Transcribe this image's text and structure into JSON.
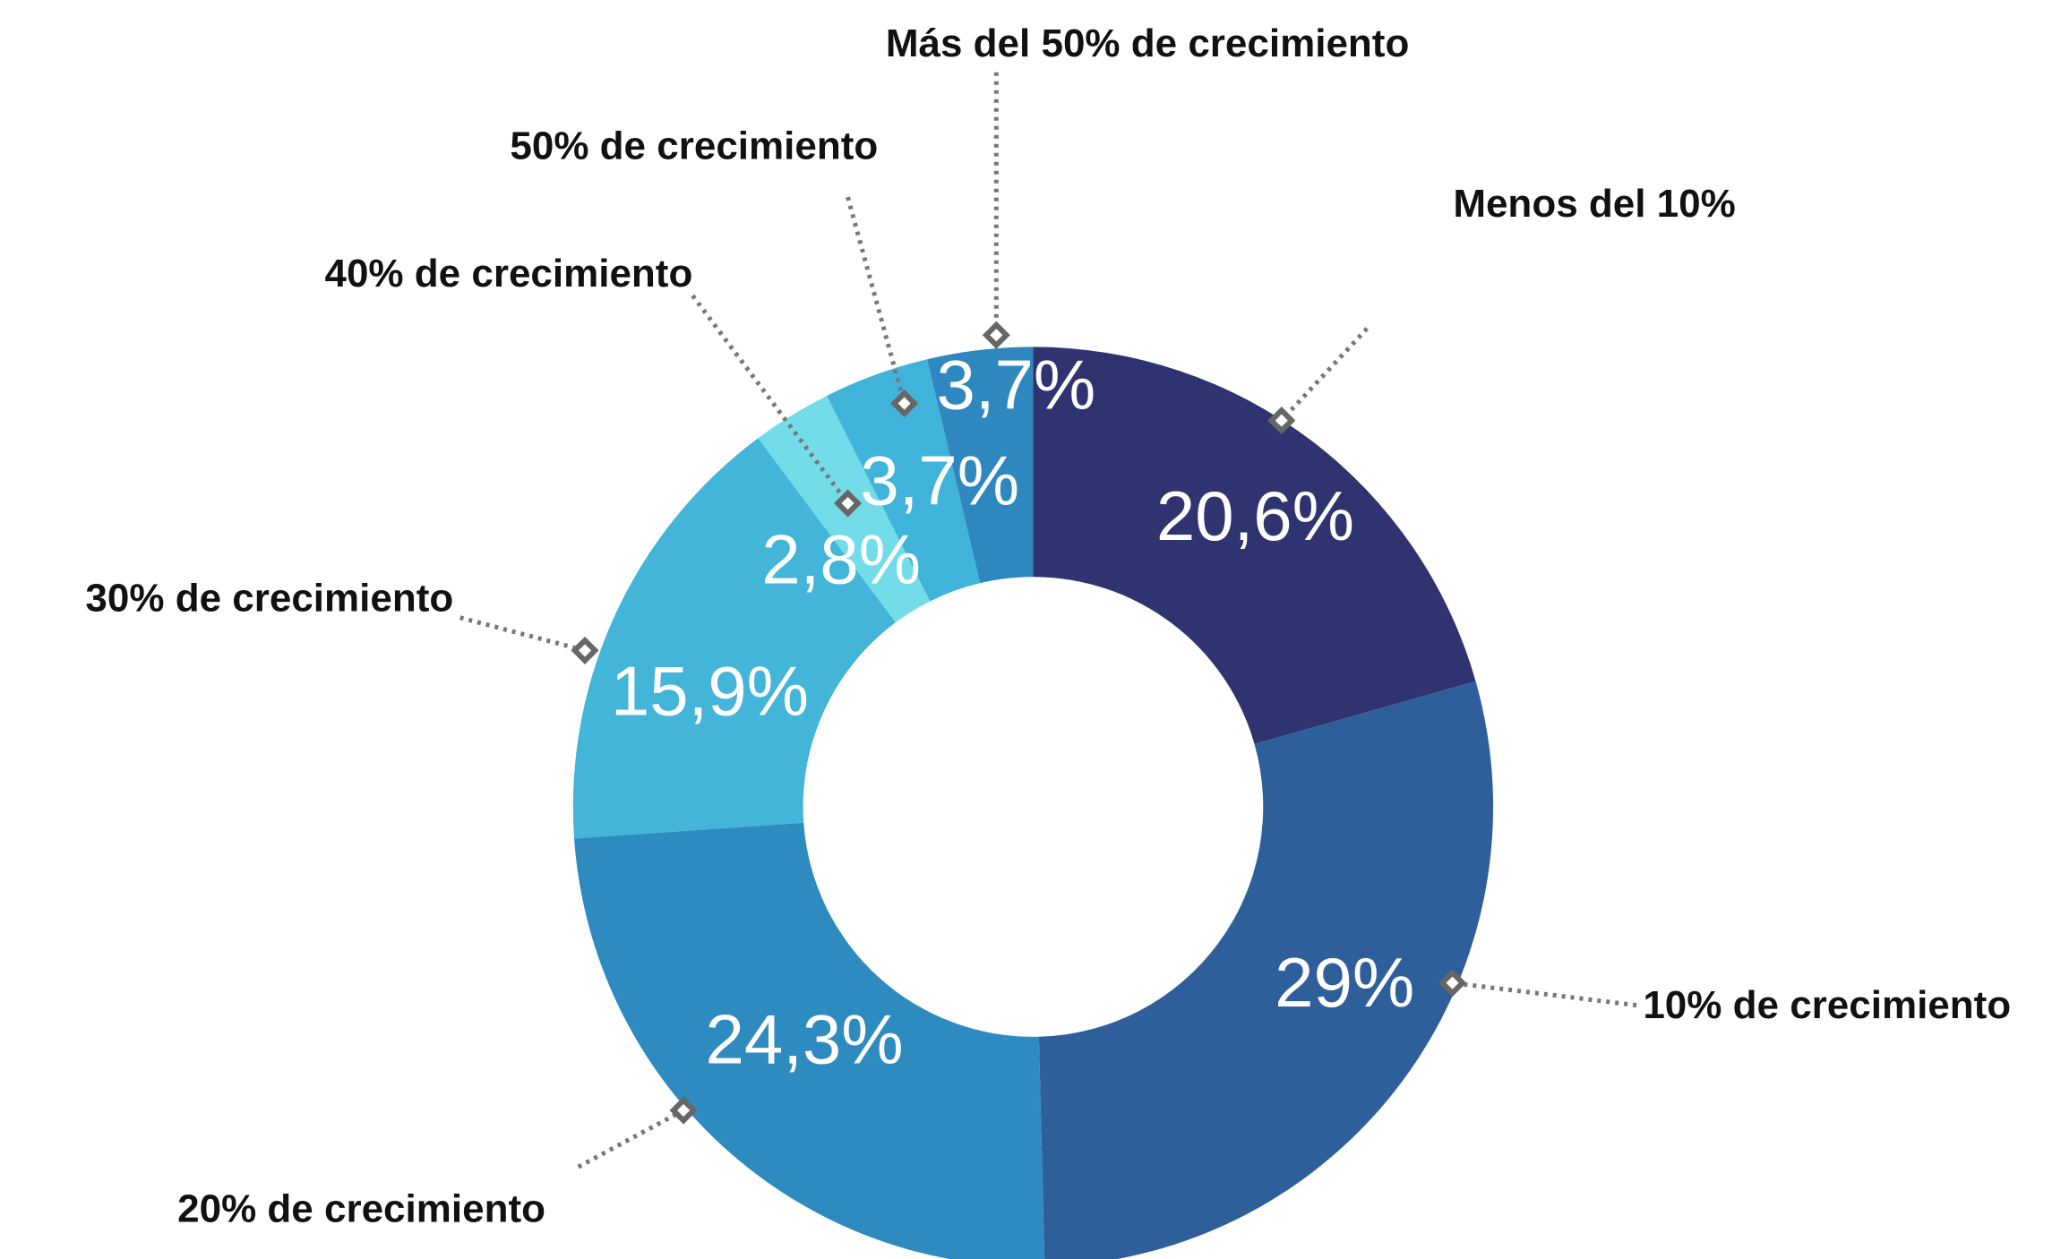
{
  "chart_data": {
    "type": "donut",
    "categories": [
      "Menos del 10%",
      "10% de crecimiento",
      "20% de crecimiento",
      "30% de crecimiento",
      "40% de crecimiento",
      "50% de crecimiento",
      "Más del 50% de crecimiento"
    ],
    "values": [
      20.6,
      29,
      24.3,
      15.9,
      2.8,
      3.7,
      3.7
    ],
    "value_labels": [
      "20,6%",
      "29%",
      "24,3%",
      "15,9%",
      "2,8%",
      "3,7%",
      "3,7%"
    ],
    "colors": [
      "#2f336f",
      "#2f5f9b",
      "#2e8bc0",
      "#42b5d8",
      "#72dde8",
      "#3fb3da",
      "#2e87bf"
    ]
  }
}
